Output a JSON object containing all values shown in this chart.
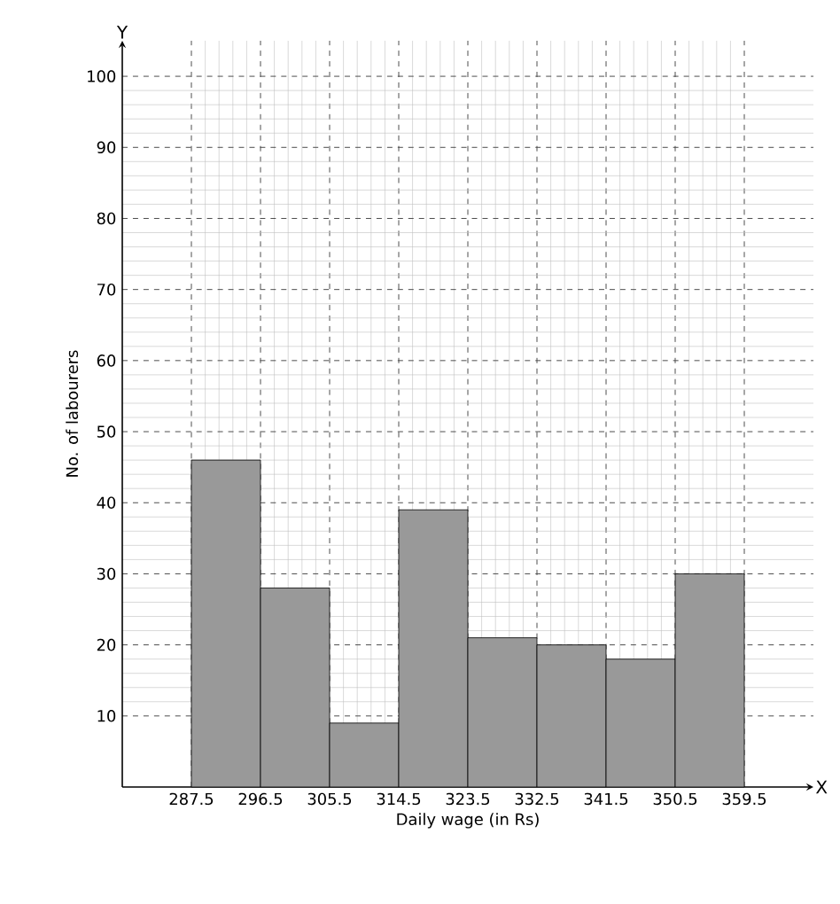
{
  "chart_data": {
    "type": "histogram",
    "xlabel": "Daily wage (in Rs)",
    "ylabel": "No. of labourers",
    "bins": [
      287.5,
      296.5,
      305.5,
      314.5,
      323.5,
      332.5,
      341.5,
      350.5,
      359.5
    ],
    "values": [
      46,
      28,
      9,
      39,
      21,
      20,
      18,
      30
    ],
    "color": "#999999",
    "xlim": [
      278.5,
      368.5
    ],
    "ylim": [
      0,
      105
    ],
    "xticks": [
      287.5,
      296.5,
      305.5,
      314.5,
      323.5,
      332.5,
      341.5,
      350.5,
      359.5
    ],
    "yticks": [
      10,
      20,
      30,
      40,
      50,
      60,
      70,
      80,
      90,
      100
    ],
    "grid": true,
    "annotations": [
      "Y",
      "X"
    ]
  }
}
